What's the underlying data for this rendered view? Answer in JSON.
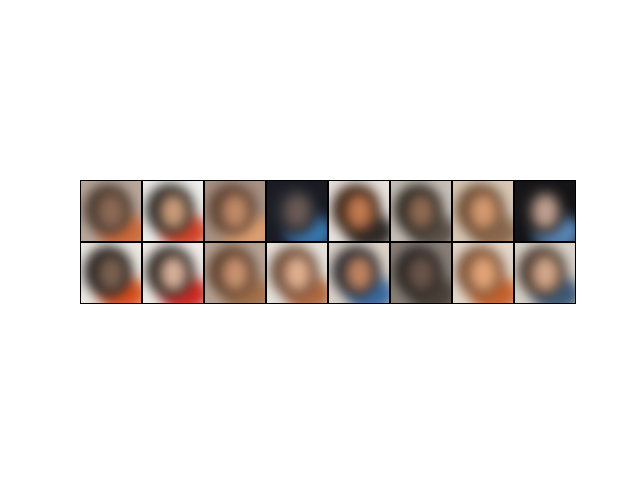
{
  "grid": {
    "rows": 2,
    "cols": 8,
    "description_colors": {
      "background_palette": [
        "#9a8a7e",
        "#f2eee8",
        "#3a2a22",
        "#1a1c24",
        "#d2552a",
        "#3c6fa0"
      ]
    },
    "tiles": [
      {
        "bg": "#b9a89b",
        "hair": "#4a3a30",
        "skin": "#8c6a55",
        "accent": "#d06a3a"
      },
      {
        "bg": "#eeeeea",
        "hair": "#2a2622",
        "skin": "#c99c7a",
        "accent": "#d4452a"
      },
      {
        "bg": "#a89284",
        "hair": "#5a4032",
        "skin": "#c08a66",
        "accent": "#e0a070"
      },
      {
        "bg": "#1a1a22",
        "hair": "#23262e",
        "skin": "#6a5a55",
        "accent": "#3a78b0"
      },
      {
        "bg": "#e8e2dc",
        "hair": "#3a2418",
        "skin": "#c27a50",
        "accent": "#2e2a28"
      },
      {
        "bg": "#c8c0b8",
        "hair": "#2e2a24",
        "skin": "#8e6a52",
        "accent": "#5a5048"
      },
      {
        "bg": "#d8c8b6",
        "hair": "#6a4a32",
        "skin": "#d49a70",
        "accent": "#8a6a50"
      },
      {
        "bg": "#141416",
        "hair": "#1e1c1e",
        "skin": "#c0a090",
        "accent": "#5a88b8"
      },
      {
        "bg": "#ece8e2",
        "hair": "#2a2422",
        "skin": "#7a6050",
        "accent": "#d8501e"
      },
      {
        "bg": "#f0ece8",
        "hair": "#2a2420",
        "skin": "#d8b09a",
        "accent": "#cc2a22"
      },
      {
        "bg": "#b8a496",
        "hair": "#5a3e2c",
        "skin": "#c89270",
        "accent": "#a0704a"
      },
      {
        "bg": "#e6e2dc",
        "hair": "#6a4a36",
        "skin": "#e0b090",
        "accent": "#b06840"
      },
      {
        "bg": "#dcd2c8",
        "hair": "#2a2a30",
        "skin": "#c08460",
        "accent": "#3a6aa0"
      },
      {
        "bg": "#8a8078",
        "hair": "#2a2624",
        "skin": "#6a5448",
        "accent": "#4a4038"
      },
      {
        "bg": "#e4d8cc",
        "hair": "#7a5236",
        "skin": "#e2a478",
        "accent": "#c8602a"
      },
      {
        "bg": "#d8d2ca",
        "hair": "#4a3a30",
        "skin": "#d4a88a",
        "accent": "#3c5a78"
      }
    ]
  }
}
